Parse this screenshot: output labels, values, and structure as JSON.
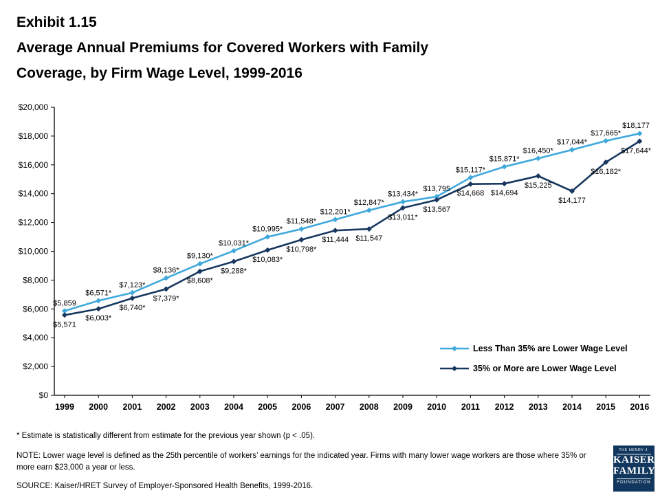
{
  "header": {
    "exhibit": "Exhibit 1.15",
    "title_line1": "Average Annual Premiums for Covered Workers with Family",
    "title_line2": "Coverage, by Firm Wage Level, 1999-2016"
  },
  "chart_data": {
    "type": "line",
    "title": "Average Annual Premiums for Covered Workers with Family Coverage, by Firm Wage Level, 1999-2016",
    "categories": [
      "1999",
      "2000",
      "2001",
      "2002",
      "2003",
      "2004",
      "2005",
      "2006",
      "2007",
      "2008",
      "2009",
      "2010",
      "2011",
      "2012",
      "2013",
      "2014",
      "2015",
      "2016"
    ],
    "series": [
      {
        "name": "Less Than 35% are Lower Wage Level",
        "color": "#3FA9DC",
        "label_side": "above",
        "values": [
          5859,
          6571,
          7123,
          8136,
          9130,
          10031,
          10995,
          11548,
          12201,
          12847,
          13434,
          13795,
          15117,
          15871,
          16450,
          17044,
          17665,
          18177
        ],
        "labels": [
          "$5,859",
          "$6,571*",
          "$7,123*",
          "$8,136*",
          "$9,130*",
          "$10,031*",
          "$10,995*",
          "$11,548*",
          "$12,201*",
          "$12,847*",
          "$13,434*",
          "$13,795",
          "$15,117*",
          "$15,871*",
          "$16,450*",
          "$17,044*",
          "$17,665*",
          "$18,177"
        ]
      },
      {
        "name": "35% or More are Lower Wage Level",
        "color": "#17375E",
        "label_side": "below",
        "values": [
          5571,
          6003,
          6740,
          7379,
          8608,
          9288,
          10083,
          10798,
          11444,
          11547,
          13011,
          13567,
          14668,
          14694,
          15225,
          14177,
          16182,
          17644
        ],
        "labels": [
          "$5,571",
          "$6,003*",
          "$6,740*",
          "$7,379*",
          "$8,608*",
          "$9,288*",
          "$10,083*",
          "$10,798*",
          "$11,444",
          "$11,547",
          "$13,011*",
          "$13,567",
          "$14,668",
          "$14,694",
          "$15,225",
          "$14,177",
          "$16,182*",
          "$17,644*"
        ]
      }
    ],
    "ylim": [
      0,
      20000
    ],
    "y_tick_step": 2000,
    "y_ticks": [
      "$0",
      "$2,000",
      "$4,000",
      "$6,000",
      "$8,000",
      "$10,000",
      "$12,000",
      "$14,000",
      "$16,000",
      "$18,000",
      "$20,000"
    ],
    "grid": false,
    "legend_position": "inside-right"
  },
  "footnotes": {
    "asterisk": "* Estimate is statistically different from estimate for the previous year shown (p < .05).",
    "note": "NOTE: Lower wage level is defined as the 25th percentile of workers’ earnings for the indicated year. Firms with many lower wage workers are those where 35% or more earn $23,000 a year or less.",
    "source": "SOURCE:  Kaiser/HRET Survey of Employer-Sponsored Health Benefits, 1999-2016."
  },
  "logo": {
    "line1": "THE HENRY J.",
    "line2": "KAISER",
    "line3": "FAMILY",
    "line4": "FOUNDATION",
    "bg": "#12375E"
  }
}
